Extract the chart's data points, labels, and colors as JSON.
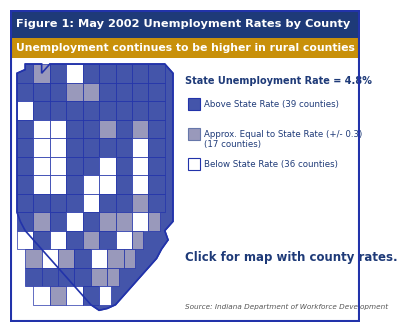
{
  "title": "Figure 1: May 2002 Unemployment Rates by County",
  "subtitle": "Unemployment continues to be higher in rural counties",
  "title_bg": "#1e3a78",
  "subtitle_bg": "#c8900a",
  "title_color": "#ffffff",
  "subtitle_color": "#ffffff",
  "body_bg": "#ffffff",
  "state_rate_text": "State Unemployment Rate = 4.8%",
  "legend_items": [
    {
      "label": "Above State Rate (39 counties)",
      "color": "#4455aa",
      "edgecolor": "#2233aa"
    },
    {
      "label": "Approx. Equal to State Rate (+/- 0.3)\n(17 counties)",
      "color": "#9999bb",
      "edgecolor": "#6677aa"
    },
    {
      "label": "Below State Rate (36 counties)",
      "color": "#ffffff",
      "edgecolor": "#2233aa"
    }
  ],
  "click_text": "Click for map with county rates.",
  "source_text": "Source: Indiana Department of Workforce Development",
  "map_outline_color": "#2233aa",
  "map_fill_dark": "#4455aa",
  "map_fill_mid": "#9999bb",
  "map_fill_light": "#ffffff",
  "text_dark_blue": "#1e3a78",
  "border_color": "#2233aa"
}
